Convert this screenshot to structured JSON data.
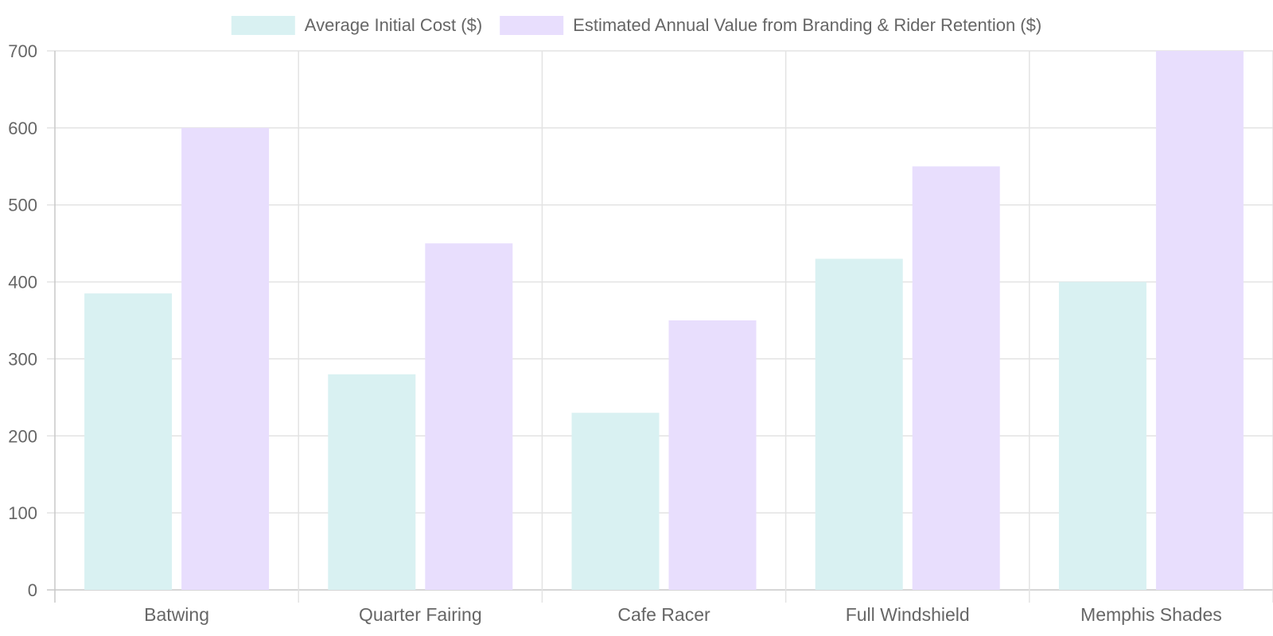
{
  "chart_data": {
    "type": "bar",
    "categories": [
      "Batwing",
      "Quarter Fairing",
      "Cafe Racer",
      "Full Windshield",
      "Memphis Shades"
    ],
    "series": [
      {
        "name": "Average Initial Cost ($)",
        "values": [
          385,
          280,
          230,
          430,
          400
        ],
        "color": "#d9f1f2"
      },
      {
        "name": "Estimated Annual Value from Branding & Rider Retention ($)",
        "values": [
          600,
          450,
          350,
          550,
          700
        ],
        "color": "#e8defd"
      }
    ],
    "ylim": [
      0,
      700
    ],
    "yticks": [
      0,
      100,
      200,
      300,
      400,
      500,
      600,
      700
    ],
    "grid": true,
    "legend_position": "top-center"
  }
}
